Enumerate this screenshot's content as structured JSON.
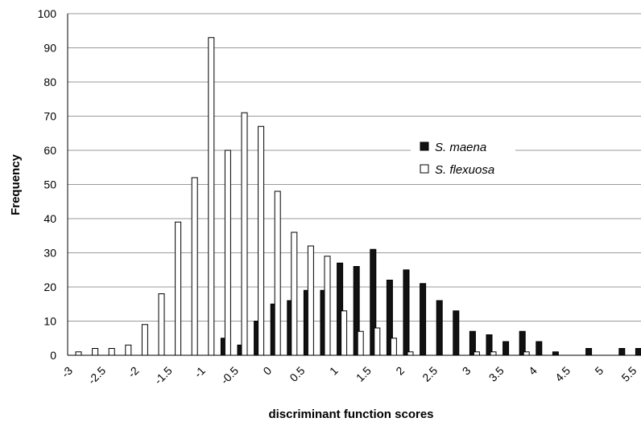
{
  "chart_data": {
    "type": "bar",
    "xlabel": "discriminant function scores",
    "ylabel": "Frequency",
    "ylim": [
      0,
      100
    ],
    "yticks": [
      "0",
      "10",
      "20",
      "30",
      "40",
      "50",
      "60",
      "70",
      "80",
      "90",
      "100"
    ],
    "xticks": [
      "-3",
      "-2.5",
      "-2",
      "-1.5",
      "-1",
      "-0.5",
      "0",
      "0.5",
      "1",
      "1.5",
      "2",
      "2.5",
      "3",
      "3.5",
      "4",
      "4.5",
      "5",
      "5.5"
    ],
    "categories": [
      "-3",
      "-2.75",
      "-2.5",
      "-2.25",
      "-2",
      "-1.75",
      "-1.5",
      "-1.25",
      "-1",
      "-0.75",
      "-0.5",
      "-0.25",
      "0",
      "0.25",
      "0.5",
      "0.75",
      "1",
      "1.25",
      "1.5",
      "1.75",
      "2",
      "2.25",
      "2.5",
      "2.75",
      "3",
      "3.25",
      "3.5",
      "3.75",
      "4",
      "4.25",
      "4.5",
      "4.75",
      "5",
      "5.25",
      "5.5"
    ],
    "series": [
      {
        "name": "S. maena",
        "color": "#111111",
        "values": [
          0,
          0,
          0,
          0,
          0,
          0,
          0,
          0,
          0,
          5,
          3,
          10,
          15,
          16,
          19,
          19,
          27,
          26,
          31,
          22,
          25,
          21,
          16,
          13,
          7,
          6,
          4,
          7,
          4,
          1,
          0,
          2,
          0,
          2,
          2
        ]
      },
      {
        "name": "S. flexuosa",
        "color": "#ffffff",
        "values": [
          1,
          2,
          2,
          3,
          9,
          18,
          39,
          52,
          93,
          60,
          71,
          67,
          48,
          36,
          32,
          29,
          13,
          7,
          8,
          5,
          1,
          0,
          0,
          0,
          1,
          1,
          0,
          1,
          0,
          0,
          0,
          0,
          0,
          0,
          0
        ]
      }
    ],
    "grid": true,
    "legend": "right"
  }
}
